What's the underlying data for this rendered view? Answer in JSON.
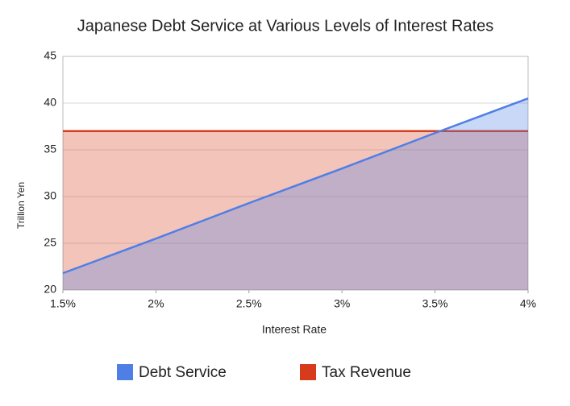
{
  "chart_data": {
    "type": "area",
    "title": "Japanese Debt Service at Various Levels of Interest Rates",
    "x_label": "Interest Rate",
    "y_label": "Trillion Yen",
    "x": [
      1.5,
      2,
      2.5,
      3,
      3.5,
      4
    ],
    "series": [
      {
        "name": "Debt Service",
        "color": "#4f7fe6",
        "values": [
          21.8,
          25.5,
          29.3,
          33.0,
          36.8,
          40.5
        ]
      },
      {
        "name": "Tax Revenue",
        "color": "#d63b1c",
        "values": [
          37,
          37,
          37,
          37,
          37,
          37
        ]
      }
    ],
    "xlim": [
      1.5,
      4
    ],
    "xticks": [
      {
        "value": 1.5,
        "label": "1.5%"
      },
      {
        "value": 2,
        "label": "2%"
      },
      {
        "value": 2.5,
        "label": "2.5%"
      },
      {
        "value": 3,
        "label": "3%"
      },
      {
        "value": 3.5,
        "label": "3.5%"
      },
      {
        "value": 4,
        "label": "4%"
      }
    ],
    "ylim": [
      20,
      45
    ],
    "yticks": [
      20,
      25,
      30,
      35,
      40,
      45
    ],
    "grid": true,
    "legend": "bottom"
  }
}
